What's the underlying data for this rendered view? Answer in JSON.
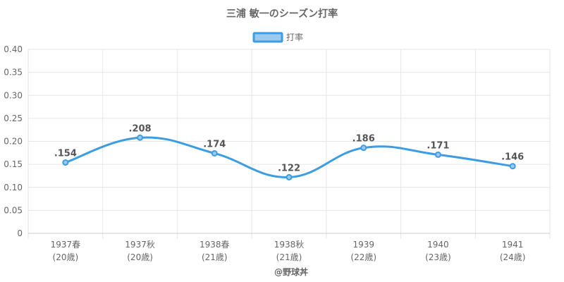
{
  "chart_data": {
    "type": "line",
    "title": "三浦 敏一のシーズン打率",
    "categories": [
      [
        "1937春",
        "(20歳)"
      ],
      [
        "1937秋",
        "(20歳)"
      ],
      [
        "1938春",
        "(21歳)"
      ],
      [
        "1938秋",
        "(21歳)"
      ],
      [
        "1939",
        "(22歳)"
      ],
      [
        "1940",
        "(23歳)"
      ],
      [
        "1941",
        "(24歳)"
      ]
    ],
    "series": [
      {
        "name": "打率",
        "values": [
          0.154,
          0.208,
          0.174,
          0.122,
          0.186,
          0.171,
          0.146
        ],
        "labels": [
          ".154",
          ".208",
          ".174",
          ".122",
          ".186",
          ".171",
          ".146"
        ],
        "color": "#3b9de3",
        "fill": "#9cc9ee"
      }
    ],
    "ylim": [
      0,
      0.4
    ],
    "yticks": [
      "0",
      "0.05",
      "0.10",
      "0.15",
      "0.20",
      "0.25",
      "0.30",
      "0.35",
      "0.40"
    ],
    "ytick_values": [
      0,
      0.05,
      0.1,
      0.15,
      0.2,
      0.25,
      0.3,
      0.35,
      0.4
    ],
    "legend_position": "top-center",
    "grid": true
  },
  "credit": "@野球丼"
}
